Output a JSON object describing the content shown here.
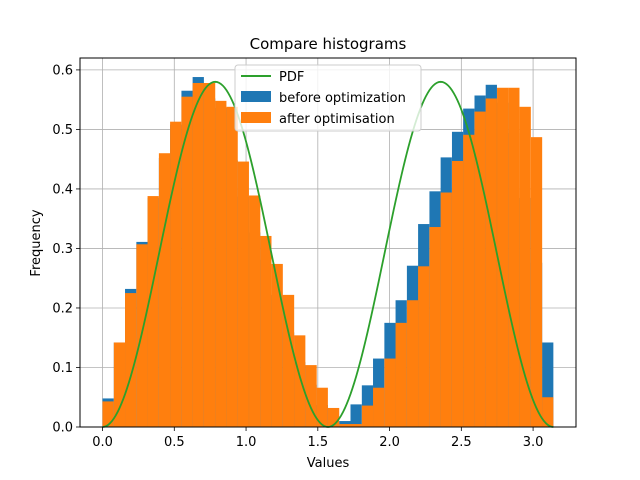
{
  "chart_data": {
    "type": "bar",
    "title": "Compare histograms",
    "xlabel": "Values",
    "ylabel": "Frequency",
    "xlim": [
      -0.157,
      3.299
    ],
    "ylim": [
      0,
      0.62
    ],
    "xticks": [
      0.0,
      0.5,
      1.0,
      1.5,
      2.0,
      2.5,
      3.0
    ],
    "xtick_labels": [
      "0.0",
      "0.5",
      "1.0",
      "1.5",
      "2.0",
      "2.5",
      "3.0"
    ],
    "yticks": [
      0.0,
      0.1,
      0.2,
      0.3,
      0.4,
      0.5,
      0.6
    ],
    "ytick_labels": [
      "0.0",
      "0.1",
      "0.2",
      "0.3",
      "0.4",
      "0.5",
      "0.6"
    ],
    "grid": true,
    "legend_position": "top-center",
    "legend": [
      {
        "label": "PDF",
        "kind": "line",
        "color": "#2ca02c"
      },
      {
        "label": "before optimization",
        "kind": "patch",
        "color": "#1f77b4"
      },
      {
        "label": "after optimisation",
        "kind": "patch",
        "color": "#ff7f0e"
      }
    ],
    "series": [
      {
        "name": "before optimization",
        "color": "#1f77b4",
        "bin_width": 0.0785,
        "x": [
          0.039,
          0.118,
          0.196,
          0.275,
          0.353,
          0.432,
          0.51,
          0.589,
          0.667,
          0.746,
          0.824,
          0.903,
          0.981,
          1.06,
          1.138,
          1.217,
          1.296,
          1.374,
          1.453,
          1.531,
          1.61,
          1.689,
          1.767,
          1.846,
          1.924,
          2.003,
          2.081,
          2.16,
          2.238,
          2.317,
          2.395,
          2.474,
          2.552,
          2.631,
          2.709,
          2.788,
          2.866,
          2.945,
          3.024,
          3.102
        ],
        "values": [
          0.048,
          0.142,
          0.232,
          0.311,
          0.385,
          0.452,
          0.508,
          0.565,
          0.588,
          0.552,
          0.536,
          0.448,
          0.387,
          0.327,
          0.281,
          0.222,
          0.159,
          0.109,
          0.071,
          0.037,
          0.01,
          0.01,
          0.038,
          0.07,
          0.115,
          0.175,
          0.213,
          0.271,
          0.341,
          0.396,
          0.453,
          0.496,
          0.535,
          0.557,
          0.575,
          0.545,
          0.494,
          0.385,
          0.276,
          0.142
        ]
      },
      {
        "name": "after optimisation",
        "color": "#ff7f0e",
        "bin_width": 0.0785,
        "x": [
          0.039,
          0.118,
          0.196,
          0.275,
          0.353,
          0.432,
          0.51,
          0.589,
          0.667,
          0.746,
          0.824,
          0.903,
          0.981,
          1.06,
          1.138,
          1.217,
          1.296,
          1.374,
          1.453,
          1.531,
          1.61,
          1.689,
          1.767,
          1.846,
          1.924,
          2.003,
          2.081,
          2.16,
          2.238,
          2.317,
          2.395,
          2.474,
          2.552,
          2.631,
          2.709,
          2.788,
          2.866,
          2.945,
          3.024,
          3.102
        ],
        "values": [
          0.043,
          0.142,
          0.225,
          0.307,
          0.388,
          0.46,
          0.513,
          0.555,
          0.578,
          0.578,
          0.548,
          0.538,
          0.446,
          0.389,
          0.321,
          0.274,
          0.222,
          0.154,
          0.104,
          0.066,
          0.032,
          0.005,
          0.005,
          0.036,
          0.066,
          0.115,
          0.175,
          0.213,
          0.27,
          0.336,
          0.394,
          0.447,
          0.491,
          0.53,
          0.552,
          0.57,
          0.57,
          0.538,
          0.487,
          0.05
        ]
      }
    ],
    "pdf": {
      "name": "PDF",
      "color": "#2ca02c",
      "formula": "sin(x)^2 / (pi/2) * ... (approx. 0.58*sin(2x)^2 scaled)",
      "x_range": [
        0.0,
        3.1416
      ]
    }
  }
}
